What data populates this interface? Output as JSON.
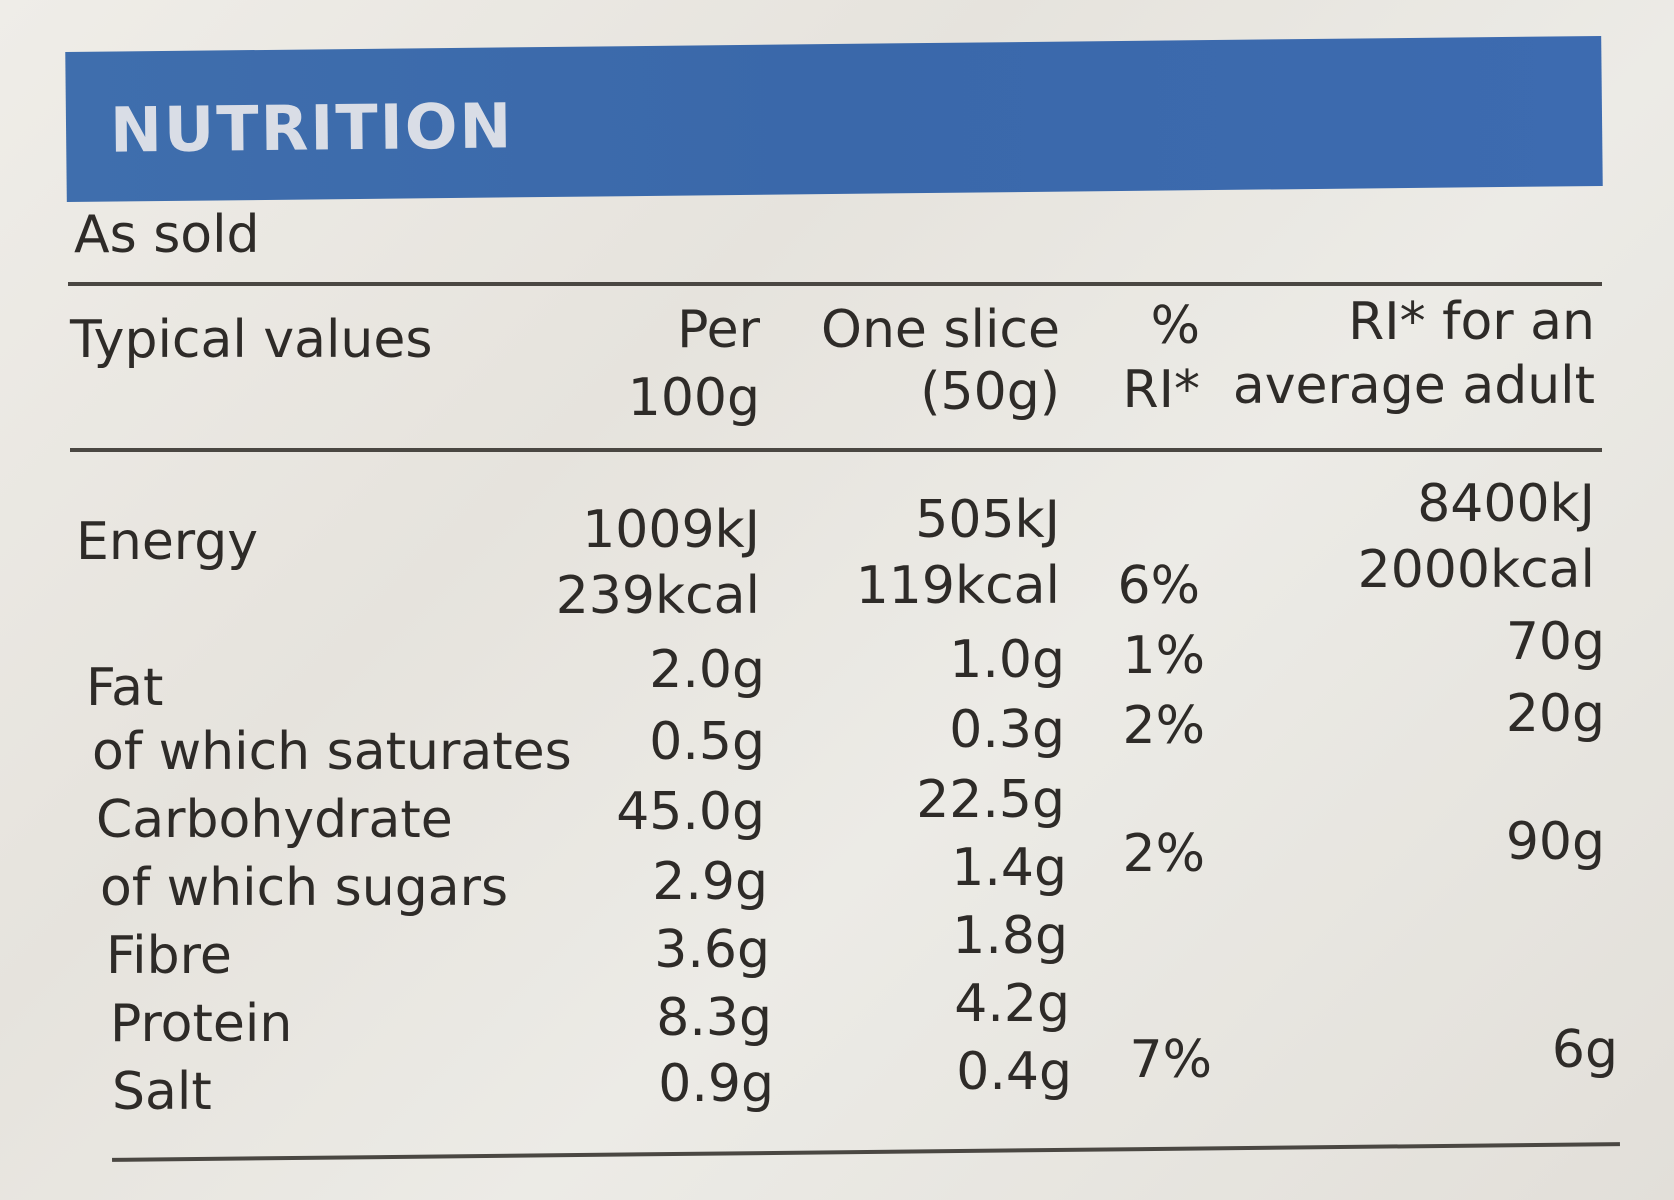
{
  "title": "NUTRITION",
  "subtitle": "As sold",
  "headers": {
    "typical": "Typical values",
    "per100_l1": "Per",
    "per100_l2": "100g",
    "slice_l1": "One slice",
    "slice_l2": "(50g)",
    "ri_l1": "%",
    "ri_l2": "RI*",
    "adult_l1": "RI* for an",
    "adult_l2": "average adult"
  },
  "rows": {
    "energy": {
      "name": "Energy",
      "per100_kj": "1009kJ",
      "per100_kcal": "239kcal",
      "slice_kj": "505kJ",
      "slice_kcal": "119kcal",
      "ri": "6%",
      "adult_kj": "8400kJ",
      "adult_kcal": "2000kcal"
    },
    "fat": {
      "name": "Fat",
      "per100": "2.0g",
      "slice": "1.0g",
      "ri": "1%",
      "adult": "70g"
    },
    "saturates": {
      "name": "of which saturates",
      "per100": "0.5g",
      "slice": "0.3g",
      "ri": "2%",
      "adult": "20g"
    },
    "carbohydrate": {
      "name": "Carbohydrate",
      "per100": "45.0g",
      "slice": "22.5g",
      "ri": "",
      "adult": ""
    },
    "sugars": {
      "name": "of which sugars",
      "per100": "2.9g",
      "slice": "1.4g",
      "ri": "2%",
      "adult": "90g"
    },
    "fibre": {
      "name": "Fibre",
      "per100": "3.6g",
      "slice": "1.8g"
    },
    "protein": {
      "name": "Protein",
      "per100": "8.3g",
      "slice": "4.2g"
    },
    "salt": {
      "name": "Salt",
      "per100": "0.9g",
      "slice": "0.4g",
      "ri": "7%",
      "adult": "6g"
    }
  },
  "colors": {
    "header": "#3d6bad",
    "text": "#2e2b28",
    "background": "#e9e6e1"
  }
}
